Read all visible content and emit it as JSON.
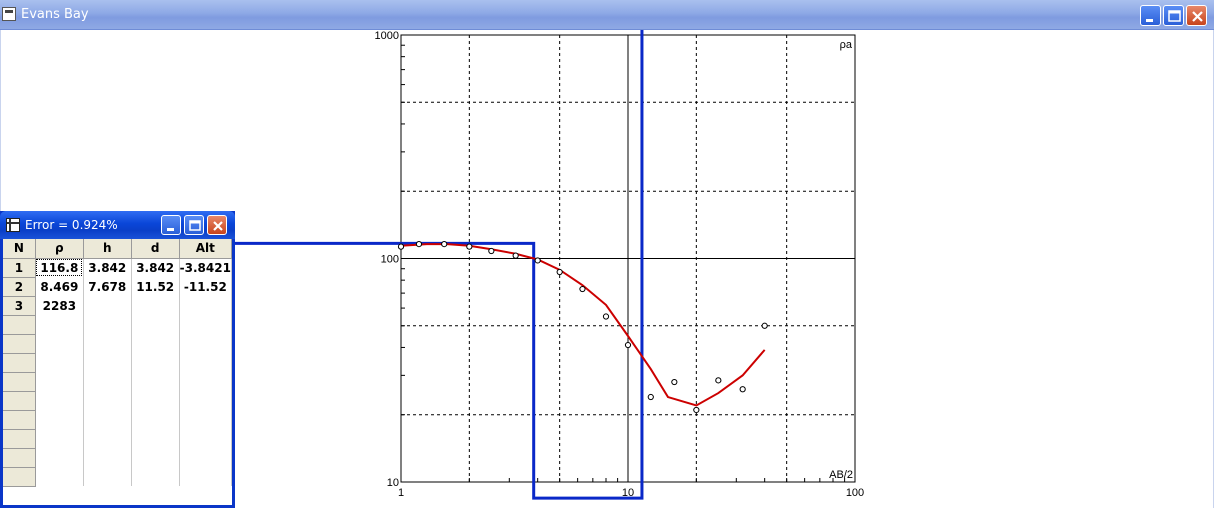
{
  "window": {
    "title": "Evans Bay"
  },
  "subwindow": {
    "title": "Error = 0.924%",
    "columns": [
      "N",
      "ρ",
      "h",
      "d",
      "Alt"
    ],
    "rows": [
      [
        "1",
        "116.8",
        "3.842",
        "3.842",
        "-3.8421"
      ],
      [
        "2",
        "8.469",
        "7.678",
        "11.52",
        "-11.52"
      ],
      [
        "3",
        "2283",
        "",
        "",
        ""
      ],
      [
        "",
        "",
        "",
        "",
        ""
      ],
      [
        "",
        "",
        "",
        "",
        ""
      ],
      [
        "",
        "",
        "",
        "",
        ""
      ],
      [
        "",
        "",
        "",
        "",
        ""
      ],
      [
        "",
        "",
        "",
        "",
        ""
      ],
      [
        "",
        "",
        "",
        "",
        ""
      ],
      [
        "",
        "",
        "",
        "",
        ""
      ],
      [
        "",
        "",
        "",
        "",
        ""
      ],
      [
        "",
        "",
        "",
        "",
        ""
      ]
    ]
  },
  "chart_data": {
    "type": "scatter",
    "xscale": "log",
    "yscale": "log",
    "xlim": [
      1,
      100
    ],
    "ylim": [
      10,
      1000
    ],
    "xlabel": "AB/2",
    "ylabel": "ρa",
    "x_ticks": [
      "1",
      "10",
      "100"
    ],
    "y_ticks": [
      "10",
      "100",
      "1000"
    ],
    "grid": true,
    "series": [
      {
        "kind": "points",
        "x": [
          1.0,
          1.2,
          1.55,
          2.0,
          2.5,
          3.2,
          4.0,
          5.0,
          6.3,
          8.0,
          10.0,
          12.6,
          16.0,
          20.0,
          25.0,
          32.0,
          40.0
        ],
        "y": [
          113,
          116,
          116,
          113,
          108,
          103,
          98,
          87,
          73,
          55,
          41,
          24,
          28,
          21,
          28.5,
          26,
          50
        ]
      },
      {
        "kind": "curve",
        "color": "#cc0000",
        "x": [
          1.0,
          1.3,
          1.6,
          2.0,
          2.5,
          3.2,
          4.0,
          5.0,
          6.3,
          8.0,
          10.0,
          12.6,
          15.0,
          20.0,
          25.0,
          32.0,
          40.0
        ],
        "y": [
          114,
          116,
          116,
          114,
          110,
          105,
          99,
          89,
          76,
          62,
          45,
          32,
          24,
          22,
          25,
          30,
          39
        ]
      },
      {
        "kind": "model",
        "color": "#0a28c8",
        "layers": [
          {
            "rho": 116.8,
            "top": 0,
            "bottom": 3.842
          },
          {
            "rho": 8.469,
            "top": 3.842,
            "bottom": 11.52
          },
          {
            "rho": 2283,
            "top": 11.52,
            "bottom": null
          }
        ]
      }
    ]
  }
}
